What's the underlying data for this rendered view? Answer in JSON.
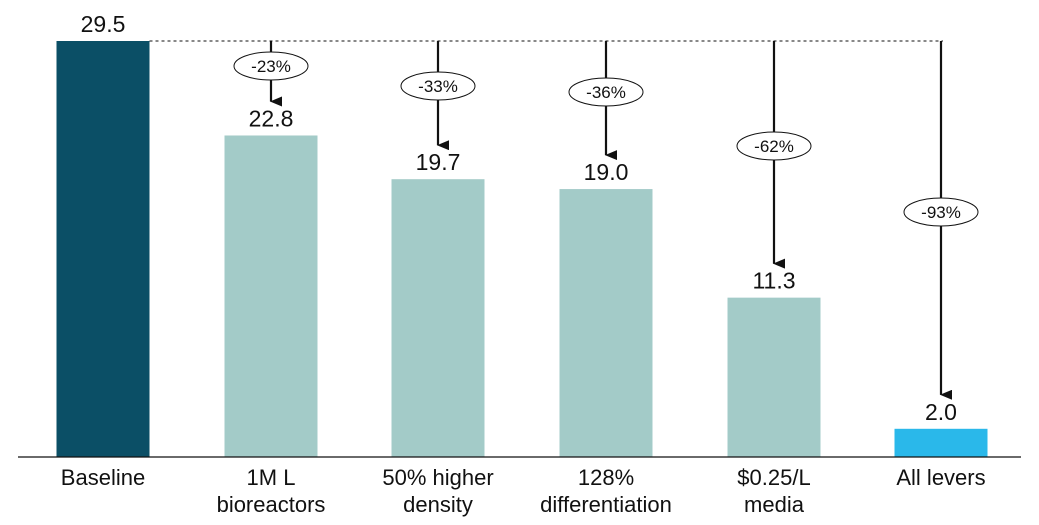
{
  "chart_data": {
    "type": "bar",
    "categories": [
      [
        "Baseline"
      ],
      [
        "1M L",
        "bioreactors"
      ],
      [
        "50% higher",
        "density"
      ],
      [
        "128%",
        "differentiation"
      ],
      [
        "$0.25/L",
        "media"
      ],
      [
        "All levers"
      ]
    ],
    "values": [
      29.5,
      22.8,
      19.7,
      19.0,
      11.3,
      2.0
    ],
    "value_labels": [
      "29.5",
      "22.8",
      "19.7",
      "19.0",
      "11.3",
      "2.0"
    ],
    "reductions": [
      "",
      "-23%",
      "-33%",
      "-36%",
      "-62%",
      "-93%"
    ],
    "bar_roles": [
      "baseline",
      "lever",
      "lever",
      "lever",
      "lever",
      "total"
    ],
    "colors": {
      "baseline": "#0b4f66",
      "lever": "#a3cbc8",
      "total": "#2ab8ea",
      "axis": "#111111",
      "arrow": "#111111"
    },
    "ylim": [
      0,
      29.5
    ],
    "grid": false,
    "reference_line": "dashed line at baseline value",
    "legend": "none",
    "title": "",
    "xlabel": "",
    "ylabel": ""
  }
}
